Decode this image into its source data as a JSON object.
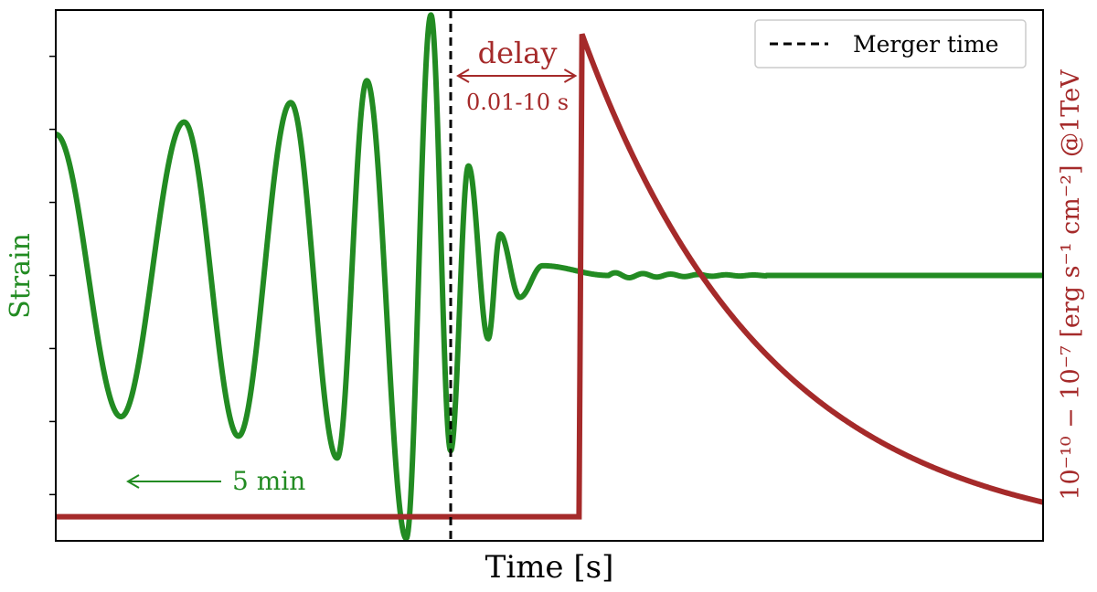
{
  "chart_data": {
    "type": "line",
    "title": "",
    "xlabel": "Time [s]",
    "ylabel_left": "Strain",
    "ylabel_right": "10⁻¹⁰ − 10⁻⁷ [erg s⁻¹ cm⁻²] @1TeV",
    "xlim": [
      0,
      1
    ],
    "ylim_left": [
      -1.09,
      1.09
    ],
    "ylim_right": [
      -0.05,
      1.05
    ],
    "grid": false,
    "legend_position": "top-right",
    "legend": [
      {
        "label": "Merger time",
        "style": "dashed",
        "color": "#000000"
      }
    ],
    "merger_time": 0.4,
    "series": [
      {
        "name": "",
        "axis": "left",
        "color": "#228b22",
        "kind": "chirp",
        "x_start": 0.0,
        "x_end": 1.0,
        "peak_time": 0.375,
        "points": [
          [
            0.0,
            0.58
          ],
          [
            0.066,
            -0.58
          ],
          [
            0.13,
            0.63
          ],
          [
            0.185,
            -0.66
          ],
          [
            0.238,
            0.71
          ],
          [
            0.285,
            -0.75
          ],
          [
            0.315,
            0.8
          ],
          [
            0.355,
            -1.08
          ],
          [
            0.38,
            1.07
          ],
          [
            0.4,
            -0.72
          ],
          [
            0.418,
            0.45
          ],
          [
            0.438,
            -0.26
          ],
          [
            0.45,
            0.17
          ],
          [
            0.47,
            -0.09
          ],
          [
            0.493,
            0.04
          ],
          [
            0.56,
            0.0
          ],
          [
            1.0,
            0.0
          ]
        ]
      },
      {
        "name": "",
        "axis": "right",
        "color": "#a52a2a",
        "kind": "flare",
        "baseline": 0.0,
        "onset_time": 0.53,
        "peak": 1.0,
        "end_value": 0.03,
        "decay_tau": 0.19
      }
    ],
    "y_ticks_left": [
      -0.9,
      -0.6,
      -0.3,
      0.0,
      0.3,
      0.6,
      0.9
    ]
  },
  "annotations": {
    "delay_label": "delay",
    "delay_range": "0.01-10 s",
    "duration_label": "5 min"
  },
  "colors": {
    "strain": "#228b22",
    "flux": "#a52a2a",
    "merger": "#000000",
    "axes": "#000000"
  }
}
